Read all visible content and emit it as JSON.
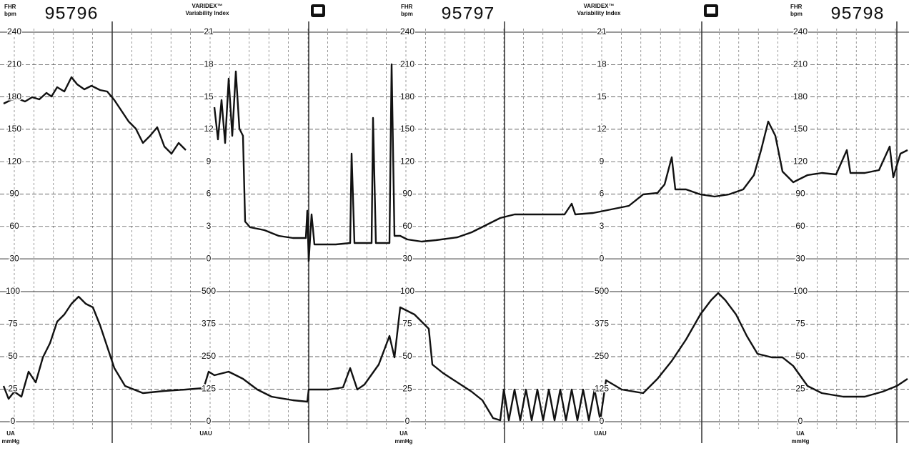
{
  "strips": [
    {
      "fhr_label": "FHR",
      "fhr_unit": "bpm",
      "number": "95796"
    },
    {
      "fhr_label": "FHR",
      "fhr_unit": "bpm",
      "number": "95797"
    },
    {
      "fhr_label": "FHR",
      "fhr_unit": "bpm",
      "number": "95798"
    }
  ],
  "varidex": [
    {
      "title": "VARIDEX™",
      "subtitle": "Variability Index"
    },
    {
      "title": "VARIDEX™",
      "subtitle": "Variability Index"
    }
  ],
  "fhr_scale": [
    "240",
    "210",
    "180",
    "150",
    "120",
    "90",
    "60",
    "30"
  ],
  "varidex_scale": [
    "21",
    "18",
    "15",
    "12",
    "9",
    "6",
    "3",
    "0"
  ],
  "ua_scale": [
    "100",
    "75",
    "50",
    "25",
    "0"
  ],
  "uau_scale": [
    "500",
    "375",
    "250",
    "125",
    "0"
  ],
  "ua_label": {
    "label": "UA",
    "unit": "mmHg"
  },
  "uau_label": "UAU"
}
